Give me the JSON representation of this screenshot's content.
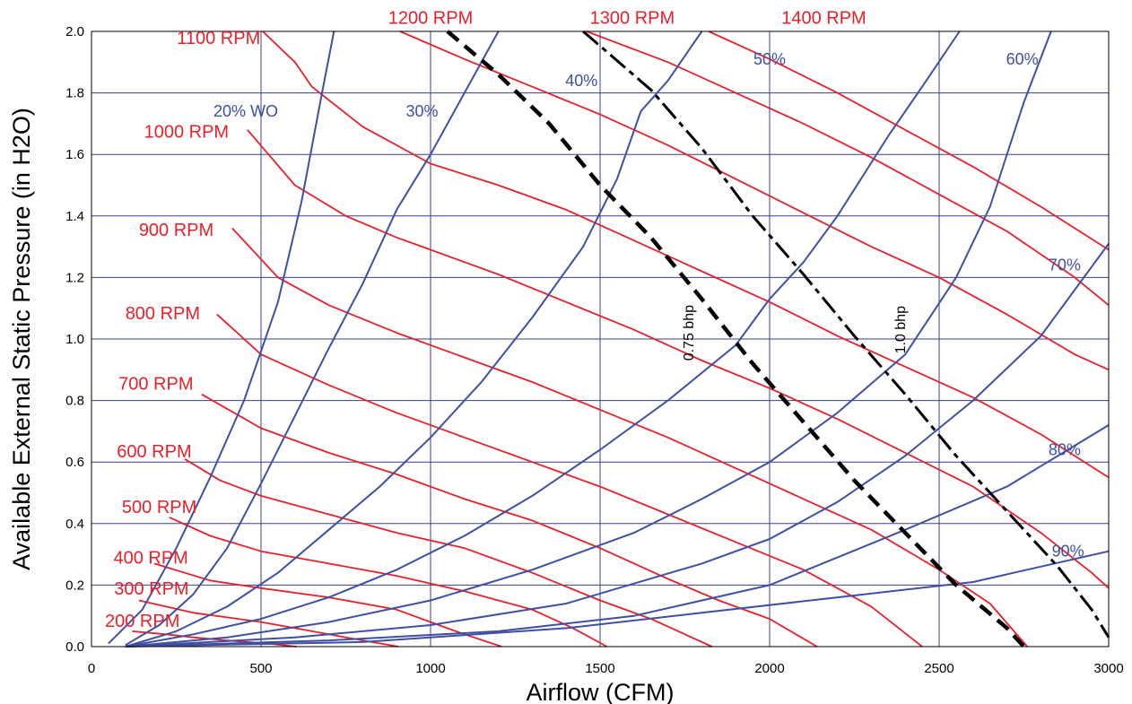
{
  "chart_data": {
    "type": "line",
    "title": "",
    "xlabel": "Airflow (CFM)",
    "ylabel": "Available External Static Pressure (in H2O)",
    "xlim": [
      0,
      3000
    ],
    "ylim": [
      0.0,
      2.0
    ],
    "x_ticks": [
      "0",
      "500",
      "1000",
      "1500",
      "2000",
      "2500",
      "3000"
    ],
    "y_ticks": [
      "0.0",
      "0.2",
      "0.4",
      "0.6",
      "0.8",
      "1.0",
      "1.2",
      "1.4",
      "1.6",
      "1.8",
      "2.0"
    ],
    "grid": true,
    "legend": "none (curves labeled directly)",
    "colors": {
      "rpm": "#e8202a",
      "wide_open": "#3f4fa3",
      "bhp": "#000000",
      "grid": "#3a3f8f"
    },
    "rpm_curves": [
      {
        "label": "200 RPM",
        "points": [
          [
            120,
            0.05
          ],
          [
            220,
            0.04
          ],
          [
            300,
            0.03
          ],
          [
            400,
            0.02
          ],
          [
            520,
            0.01
          ],
          [
            605,
            0.0
          ]
        ]
      },
      {
        "label": "300 RPM",
        "points": [
          [
            140,
            0.15
          ],
          [
            300,
            0.11
          ],
          [
            400,
            0.095
          ],
          [
            500,
            0.08
          ],
          [
            600,
            0.06
          ],
          [
            700,
            0.04
          ],
          [
            800,
            0.02
          ],
          [
            905,
            0.0
          ]
        ]
      },
      {
        "label": "400 RPM",
        "points": [
          [
            185,
            0.27
          ],
          [
            350,
            0.215
          ],
          [
            500,
            0.19
          ],
          [
            700,
            0.16
          ],
          [
            900,
            0.12
          ],
          [
            1000,
            0.08
          ],
          [
            1100,
            0.04
          ],
          [
            1210,
            0.0
          ]
        ]
      },
      {
        "label": "500 RPM",
        "points": [
          [
            230,
            0.42
          ],
          [
            350,
            0.36
          ],
          [
            500,
            0.31
          ],
          [
            700,
            0.27
          ],
          [
            900,
            0.23
          ],
          [
            1100,
            0.18
          ],
          [
            1300,
            0.12
          ],
          [
            1420,
            0.06
          ],
          [
            1520,
            0.0
          ]
        ]
      },
      {
        "label": "600 RPM",
        "points": [
          [
            275,
            0.61
          ],
          [
            380,
            0.54
          ],
          [
            500,
            0.49
          ],
          [
            700,
            0.43
          ],
          [
            900,
            0.37
          ],
          [
            1100,
            0.32
          ],
          [
            1300,
            0.24
          ],
          [
            1500,
            0.15
          ],
          [
            1650,
            0.09
          ],
          [
            1830,
            0.0
          ]
        ]
      },
      {
        "label": "700 RPM",
        "points": [
          [
            325,
            0.82
          ],
          [
            500,
            0.71
          ],
          [
            700,
            0.63
          ],
          [
            900,
            0.56
          ],
          [
            1100,
            0.48
          ],
          [
            1300,
            0.41
          ],
          [
            1500,
            0.32
          ],
          [
            1700,
            0.22
          ],
          [
            1850,
            0.15
          ],
          [
            2000,
            0.09
          ],
          [
            2140,
            0.0
          ]
        ]
      },
      {
        "label": "800 RPM",
        "points": [
          [
            370,
            1.08
          ],
          [
            500,
            0.95
          ],
          [
            700,
            0.85
          ],
          [
            900,
            0.76
          ],
          [
            1100,
            0.68
          ],
          [
            1300,
            0.6
          ],
          [
            1500,
            0.52
          ],
          [
            1700,
            0.43
          ],
          [
            1900,
            0.34
          ],
          [
            2100,
            0.25
          ],
          [
            2300,
            0.13
          ],
          [
            2450,
            0.0
          ]
        ]
      },
      {
        "label": "900 RPM",
        "points": [
          [
            415,
            1.36
          ],
          [
            550,
            1.2
          ],
          [
            700,
            1.11
          ],
          [
            900,
            1.02
          ],
          [
            1100,
            0.94
          ],
          [
            1300,
            0.86
          ],
          [
            1500,
            0.77
          ],
          [
            1700,
            0.68
          ],
          [
            1900,
            0.58
          ],
          [
            2100,
            0.48
          ],
          [
            2300,
            0.38
          ],
          [
            2500,
            0.25
          ],
          [
            2650,
            0.14
          ],
          [
            2760,
            0.0
          ]
        ]
      },
      {
        "label": "1000 RPM",
        "points": [
          [
            460,
            1.68
          ],
          [
            600,
            1.5
          ],
          [
            750,
            1.4
          ],
          [
            900,
            1.33
          ],
          [
            1000,
            1.29
          ],
          [
            1200,
            1.21
          ],
          [
            1400,
            1.12
          ],
          [
            1600,
            1.03
          ],
          [
            1800,
            0.93
          ],
          [
            2000,
            0.84
          ],
          [
            2200,
            0.74
          ],
          [
            2400,
            0.63
          ],
          [
            2600,
            0.52
          ],
          [
            2800,
            0.37
          ],
          [
            2950,
            0.24
          ],
          [
            3000,
            0.19
          ]
        ]
      },
      {
        "label": "1100 RPM",
        "points": [
          [
            505,
            2.0
          ],
          [
            600,
            1.9
          ],
          [
            650,
            1.82
          ],
          [
            800,
            1.69
          ],
          [
            1000,
            1.57
          ],
          [
            1200,
            1.5
          ],
          [
            1400,
            1.42
          ],
          [
            1600,
            1.32
          ],
          [
            1800,
            1.22
          ],
          [
            2000,
            1.12
          ],
          [
            2200,
            1.01
          ],
          [
            2400,
            0.91
          ],
          [
            2600,
            0.81
          ],
          [
            2800,
            0.69
          ],
          [
            3000,
            0.55
          ]
        ]
      },
      {
        "label": "1200 RPM",
        "points": [
          [
            910,
            2.0
          ],
          [
            1100,
            1.91
          ],
          [
            1300,
            1.82
          ],
          [
            1500,
            1.73
          ],
          [
            1700,
            1.63
          ],
          [
            1900,
            1.52
          ],
          [
            2100,
            1.41
          ],
          [
            2300,
            1.3
          ],
          [
            2500,
            1.2
          ],
          [
            2700,
            1.08
          ],
          [
            2900,
            0.95
          ],
          [
            3000,
            0.9
          ]
        ]
      },
      {
        "label": "1300 RPM",
        "points": [
          [
            1460,
            2.0
          ],
          [
            1700,
            1.9
          ],
          [
            1900,
            1.8
          ],
          [
            2100,
            1.7
          ],
          [
            2300,
            1.59
          ],
          [
            2500,
            1.47
          ],
          [
            2700,
            1.35
          ],
          [
            2900,
            1.2
          ],
          [
            3000,
            1.11
          ]
        ]
      },
      {
        "label": "1400 RPM",
        "points": [
          [
            1820,
            2.0
          ],
          [
            2000,
            1.91
          ],
          [
            2200,
            1.8
          ],
          [
            2400,
            1.68
          ],
          [
            2600,
            1.56
          ],
          [
            2800,
            1.43
          ],
          [
            3000,
            1.29
          ]
        ]
      }
    ],
    "rpm_labels": [
      {
        "text": "200 RPM",
        "x": 150,
        "y": 0.085
      },
      {
        "text": "300 RPM",
        "x": 177,
        "y": 0.19
      },
      {
        "text": "400 RPM",
        "x": 175,
        "y": 0.29
      },
      {
        "text": "500 RPM",
        "x": 200,
        "y": 0.455
      },
      {
        "text": "600 RPM",
        "x": 185,
        "y": 0.635
      },
      {
        "text": "700 RPM",
        "x": 190,
        "y": 0.855
      },
      {
        "text": "800 RPM",
        "x": 210,
        "y": 1.085
      },
      {
        "text": "900 RPM",
        "x": 250,
        "y": 1.355
      },
      {
        "text": "1000 RPM",
        "x": 280,
        "y": 1.675
      },
      {
        "text": "1100 RPM",
        "x": 375,
        "y": 1.98
      },
      {
        "text": "1200 RPM",
        "x": 1000,
        "y": 2.045
      },
      {
        "text": "1300 RPM",
        "x": 1595,
        "y": 2.045
      },
      {
        "text": "1400 RPM",
        "x": 2160,
        "y": 2.045
      }
    ],
    "wide_open_curves": [
      {
        "label": "20% WO",
        "points": [
          [
            50,
            0.01
          ],
          [
            150,
            0.12
          ],
          [
            250,
            0.32
          ],
          [
            350,
            0.55
          ],
          [
            450,
            0.8
          ],
          [
            550,
            1.12
          ],
          [
            620,
            1.45
          ],
          [
            680,
            1.8
          ],
          [
            715,
            2.0
          ]
        ]
      },
      {
        "label": "30%",
        "points": [
          [
            100,
            0.005
          ],
          [
            200,
            0.07
          ],
          [
            300,
            0.17
          ],
          [
            400,
            0.32
          ],
          [
            500,
            0.53
          ],
          [
            600,
            0.75
          ],
          [
            700,
            0.97
          ],
          [
            800,
            1.18
          ],
          [
            900,
            1.42
          ],
          [
            1000,
            1.6
          ],
          [
            1100,
            1.8
          ],
          [
            1200,
            2.0
          ]
        ]
      },
      {
        "label": "40%",
        "points": [
          [
            100,
            0.0
          ],
          [
            250,
            0.05
          ],
          [
            400,
            0.13
          ],
          [
            550,
            0.24
          ],
          [
            700,
            0.38
          ],
          [
            850,
            0.52
          ],
          [
            1000,
            0.68
          ],
          [
            1150,
            0.86
          ],
          [
            1300,
            1.07
          ],
          [
            1450,
            1.3
          ],
          [
            1550,
            1.52
          ],
          [
            1620,
            1.74
          ],
          [
            1700,
            1.84
          ],
          [
            1800,
            2.0
          ]
        ]
      },
      {
        "label": "50%",
        "points": [
          [
            100,
            0.0
          ],
          [
            300,
            0.04
          ],
          [
            500,
            0.09
          ],
          [
            700,
            0.16
          ],
          [
            900,
            0.25
          ],
          [
            1100,
            0.36
          ],
          [
            1300,
            0.49
          ],
          [
            1500,
            0.64
          ],
          [
            1700,
            0.8
          ],
          [
            1900,
            0.98
          ],
          [
            2000,
            1.13
          ],
          [
            2100,
            1.25
          ],
          [
            2200,
            1.4
          ],
          [
            2350,
            1.66
          ],
          [
            2450,
            1.82
          ],
          [
            2560,
            2.0
          ]
        ]
      },
      {
        "label": "60%",
        "points": [
          [
            100,
            0.0
          ],
          [
            400,
            0.03
          ],
          [
            700,
            0.08
          ],
          [
            1000,
            0.15
          ],
          [
            1300,
            0.25
          ],
          [
            1600,
            0.37
          ],
          [
            1800,
            0.48
          ],
          [
            2000,
            0.6
          ],
          [
            2200,
            0.76
          ],
          [
            2400,
            0.95
          ],
          [
            2550,
            1.2
          ],
          [
            2650,
            1.43
          ],
          [
            2750,
            1.77
          ],
          [
            2830,
            2.0
          ]
        ]
      },
      {
        "label": "70%",
        "points": [
          [
            100,
            0.0
          ],
          [
            600,
            0.03
          ],
          [
            1000,
            0.07
          ],
          [
            1400,
            0.14
          ],
          [
            1800,
            0.27
          ],
          [
            2000,
            0.35
          ],
          [
            2200,
            0.47
          ],
          [
            2400,
            0.62
          ],
          [
            2600,
            0.8
          ],
          [
            2800,
            1.01
          ],
          [
            3000,
            1.31
          ]
        ]
      },
      {
        "label": "80%",
        "points": [
          [
            100,
            0.0
          ],
          [
            700,
            0.02
          ],
          [
            1200,
            0.05
          ],
          [
            1600,
            0.1
          ],
          [
            2000,
            0.2
          ],
          [
            2400,
            0.38
          ],
          [
            2700,
            0.52
          ],
          [
            2850,
            0.62
          ],
          [
            3000,
            0.72
          ]
        ]
      },
      {
        "label": "90%",
        "points": [
          [
            100,
            0.0
          ],
          [
            800,
            0.015
          ],
          [
            1400,
            0.06
          ],
          [
            1800,
            0.11
          ],
          [
            2200,
            0.16
          ],
          [
            2600,
            0.21
          ],
          [
            2800,
            0.26
          ],
          [
            3000,
            0.31
          ]
        ]
      }
    ],
    "wide_open_labels": [
      {
        "text": "20% WO",
        "x": 455,
        "y": 1.74
      },
      {
        "text": "30%",
        "x": 975,
        "y": 1.74
      },
      {
        "text": "40%",
        "x": 1445,
        "y": 1.84
      },
      {
        "text": "50%",
        "x": 2000,
        "y": 1.91
      },
      {
        "text": "60%",
        "x": 2745,
        "y": 1.91
      },
      {
        "text": "70%",
        "x": 2870,
        "y": 1.24
      },
      {
        "text": "80%",
        "x": 2870,
        "y": 0.64
      },
      {
        "text": "90%",
        "x": 2880,
        "y": 0.31
      }
    ],
    "bhp_curves": [
      {
        "label": "0.75 bhp",
        "points": [
          [
            1050,
            2.0
          ],
          [
            1200,
            1.86
          ],
          [
            1350,
            1.7
          ],
          [
            1500,
            1.5
          ],
          [
            1650,
            1.33
          ],
          [
            1800,
            1.13
          ],
          [
            1950,
            0.92
          ],
          [
            2100,
            0.73
          ],
          [
            2250,
            0.54
          ],
          [
            2400,
            0.37
          ],
          [
            2550,
            0.2
          ],
          [
            2700,
            0.06
          ],
          [
            2750,
            0.0
          ]
        ]
      },
      {
        "label": "1.0 bhp",
        "points": [
          [
            1450,
            2.0
          ],
          [
            1650,
            1.81
          ],
          [
            1800,
            1.62
          ],
          [
            1950,
            1.4
          ],
          [
            2100,
            1.21
          ],
          [
            2250,
            1.01
          ],
          [
            2400,
            0.82
          ],
          [
            2550,
            0.62
          ],
          [
            2700,
            0.44
          ],
          [
            2850,
            0.26
          ],
          [
            2950,
            0.12
          ],
          [
            3000,
            0.03
          ]
        ]
      }
    ],
    "bhp_labels": [
      {
        "text": "0.75 bhp",
        "x": 1775,
        "y": 1.02
      },
      {
        "text": "1.0 bhp",
        "x": 2400,
        "y": 1.03
      }
    ]
  }
}
